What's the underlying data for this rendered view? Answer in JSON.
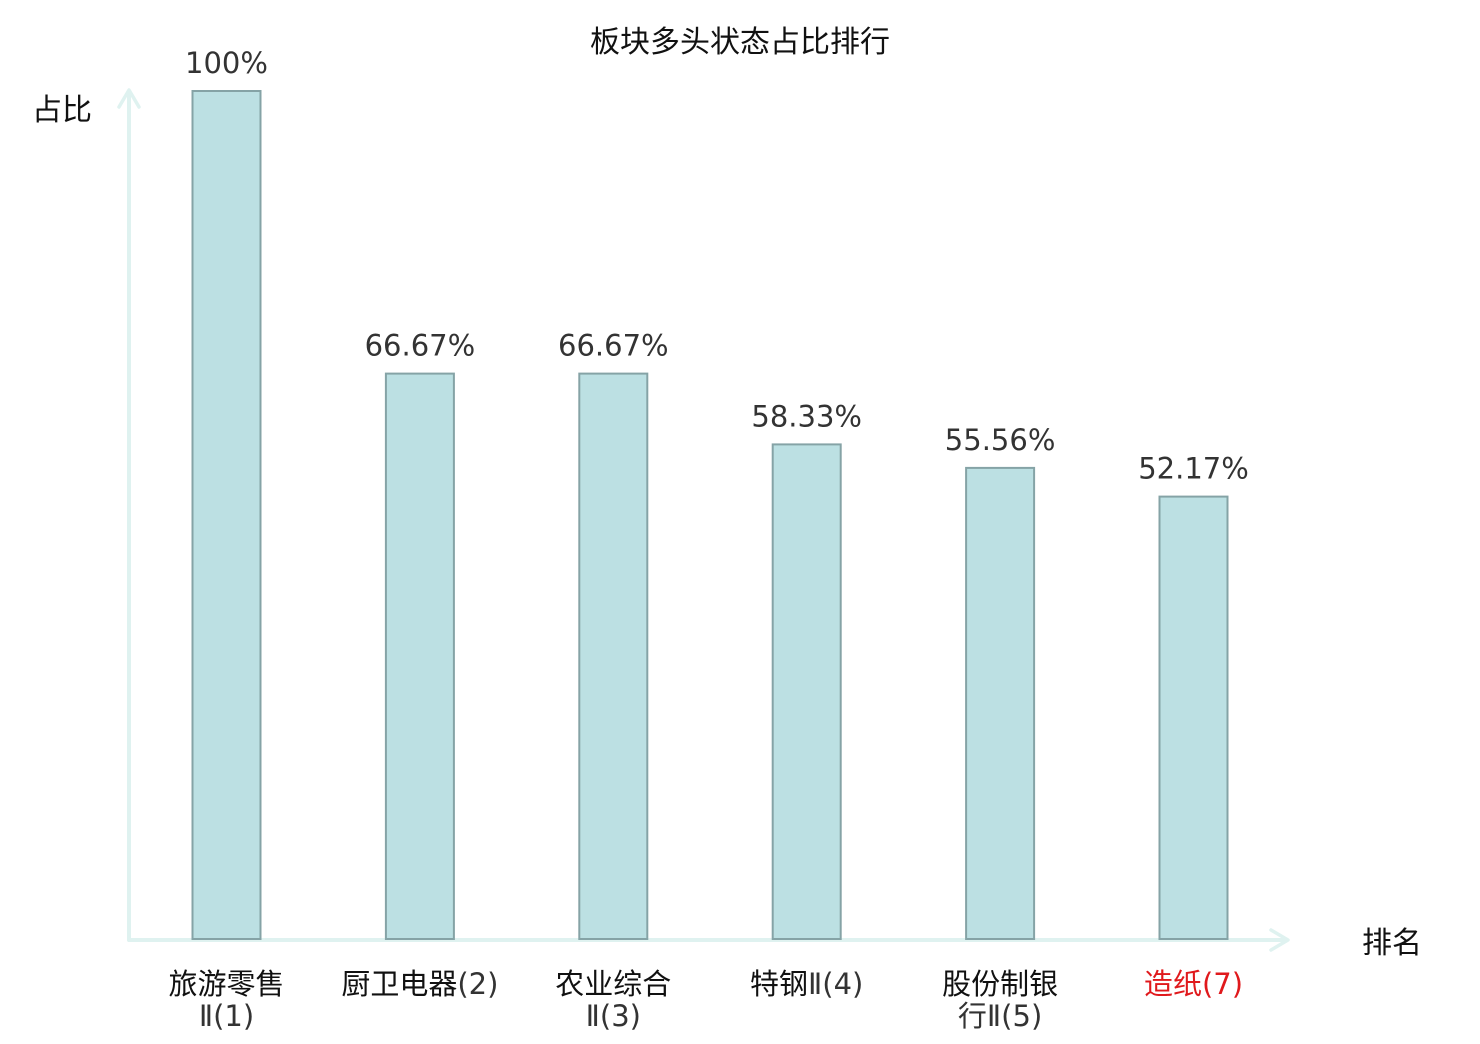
{
  "chart_data": {
    "type": "bar",
    "title": "板块多头状态占比排行",
    "ylabel": "占比",
    "xlabel": "排名",
    "ylim": [
      0,
      100
    ],
    "grid": false,
    "categories": [
      {
        "name": "旅游零售",
        "rank_label": "Ⅱ(1)",
        "highlight": false
      },
      {
        "name": "厨卫电器",
        "rank_label": "(2)",
        "highlight": false
      },
      {
        "name": "农业综合",
        "rank_label": "Ⅱ(3)",
        "highlight": false
      },
      {
        "name": "特钢",
        "rank_label": "Ⅱ(4)",
        "highlight": false
      },
      {
        "name": "股份制银",
        "rank_label": "行Ⅱ(5)",
        "highlight": false
      },
      {
        "name": "造纸",
        "rank_label": "(7)",
        "highlight": true
      }
    ],
    "values": [
      100,
      66.67,
      66.67,
      58.33,
      55.56,
      52.17
    ],
    "value_labels": [
      "100%",
      "66.67%",
      "66.67%",
      "58.33%",
      "55.56%",
      "52.17%"
    ],
    "colors": {
      "bar_fill": "#bce0e3",
      "bar_stroke": "#85a3a6",
      "axis": "#dff2f0",
      "text": "#333333",
      "label": "#111111",
      "highlight": "#e0191c"
    }
  }
}
